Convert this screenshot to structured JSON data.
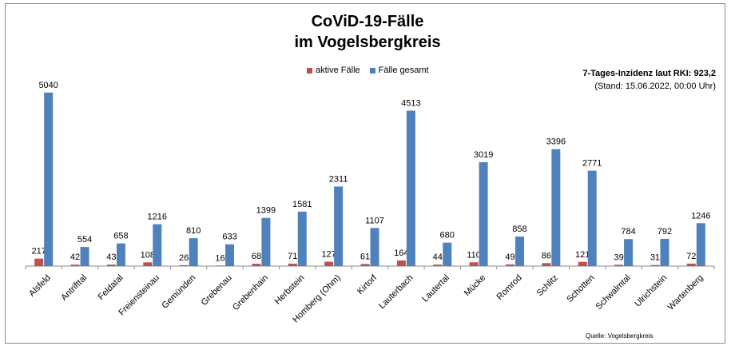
{
  "chart_data": {
    "type": "bar",
    "title_line1": "CoViD-19-Fälle",
    "title_line2": "im Vogelsbergkreis",
    "incidence_label": "7-Tages-Inzidenz laut RKI: 923,2",
    "stand_label": "(Stand: 15.06.2022, 00:00 Uhr)",
    "source_label": "Quelle: Vogelsbergkreis",
    "legend": [
      {
        "name": "aktive Fälle",
        "color": "#c0504d"
      },
      {
        "name": "Fälle gesamt",
        "color": "#4f81bd"
      }
    ],
    "categories": [
      "Alsfeld",
      "Antrifttal",
      "Feldatal",
      "Freiensteinau",
      "Gemünden",
      "Grebenau",
      "Grebenhain",
      "Herbstein",
      "Homberg (Ohm)",
      "Kirtorf",
      "Lauterbach",
      "Lautertal",
      "Mücke",
      "Romrod",
      "Schlitz",
      "Schotten",
      "Schwalmtal",
      "Ulrichstein",
      "Wartenberg"
    ],
    "series": [
      {
        "name": "aktive Fälle",
        "color": "#c0504d",
        "values": [
          217,
          42,
          43,
          108,
          26,
          16,
          68,
          71,
          127,
          61,
          164,
          44,
          110,
          49,
          86,
          121,
          39,
          31,
          72
        ]
      },
      {
        "name": "Fälle gesamt",
        "color": "#4f81bd",
        "values": [
          5040,
          554,
          658,
          1216,
          810,
          633,
          1399,
          1581,
          2311,
          1107,
          4513,
          680,
          3019,
          858,
          3396,
          2771,
          784,
          792,
          1246
        ]
      }
    ],
    "ylim": [
      0,
      5500
    ],
    "grid": false
  }
}
